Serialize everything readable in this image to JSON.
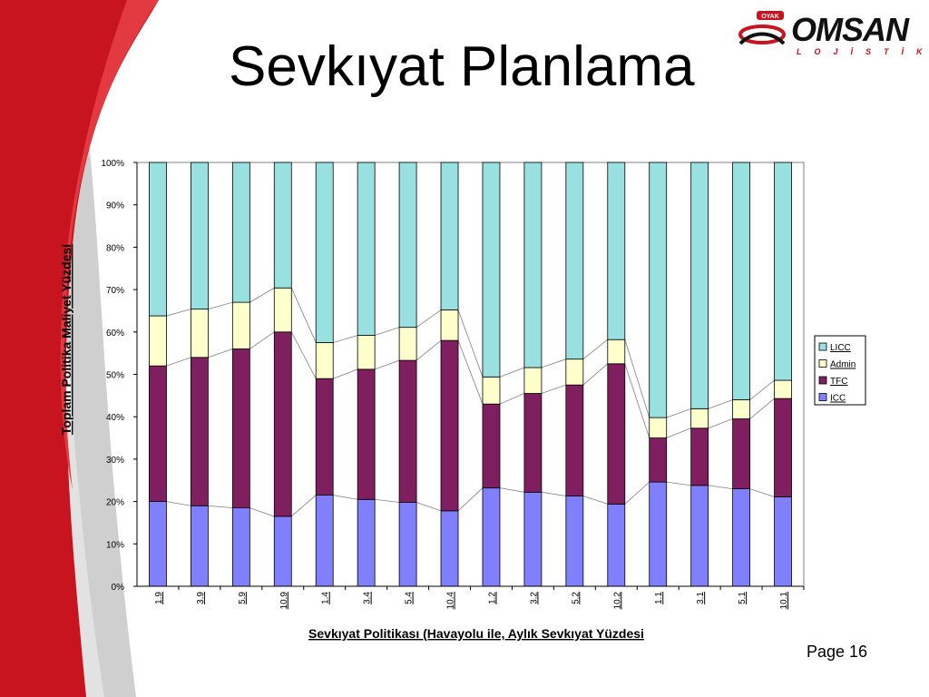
{
  "slide": {
    "title": "Sevkıyat Planlama",
    "page_label": "Page 16"
  },
  "logo": {
    "brand": "OMSAN",
    "subtitle": "LOJİSTİK",
    "badge": "OYAK"
  },
  "colors": {
    "ICC": "#8080ff",
    "TFC": "#7f1f5f",
    "Admin": "#ffffcc",
    "LICC": "#99e0e0",
    "accent_red": "#c8141e"
  },
  "chart_data": {
    "type": "bar",
    "stacked": true,
    "percent_stacked": true,
    "xlabel": "Sevkıyat Politikası (Havayolu ile, Aylık Sevkıyat Yüzdesi",
    "ylabel": "Toplam Politika Maliyet Yüzdesi",
    "ylim": [
      0,
      100
    ],
    "yticks": [
      "0%",
      "10%",
      "20%",
      "30%",
      "40%",
      "50%",
      "60%",
      "70%",
      "80%",
      "90%",
      "100%"
    ],
    "categories": [
      "1.9",
      "3.9",
      "5.9",
      "10.9",
      "1.4",
      "3.4",
      "5.4",
      "10.4",
      "1.2",
      "3.2",
      "5.2",
      "10.2",
      "1.1",
      "3.1",
      "5.1",
      "10.1"
    ],
    "series": [
      {
        "name": "ICC",
        "values": [
          20,
          19,
          18.5,
          16.5,
          21.5,
          20.5,
          19.8,
          17.8,
          23.2,
          22.2,
          21.3,
          19.4,
          24.6,
          23.8,
          23,
          21.1
        ]
      },
      {
        "name": "TFC",
        "values": [
          32,
          35,
          37.5,
          43.5,
          27.5,
          30.7,
          33.5,
          40.2,
          19.8,
          23.3,
          26.2,
          33.1,
          10.4,
          13.5,
          16.5,
          23.2
        ]
      },
      {
        "name": "Admin",
        "values": [
          11.8,
          11.4,
          11,
          10.4,
          8.5,
          8,
          7.8,
          7.2,
          6.4,
          6.1,
          6.1,
          5.7,
          4.8,
          4.6,
          4.5,
          4.3
        ]
      },
      {
        "name": "LICC",
        "values": [
          36.2,
          34.6,
          33,
          29.6,
          42.5,
          40.8,
          38.9,
          34.8,
          50.6,
          48.4,
          46.4,
          41.8,
          60.2,
          58.1,
          56,
          51.4
        ]
      }
    ],
    "legend": {
      "position": "right",
      "order": [
        "LICC",
        "Admin",
        "TFC",
        "ICC"
      ]
    },
    "series_lines": true
  }
}
